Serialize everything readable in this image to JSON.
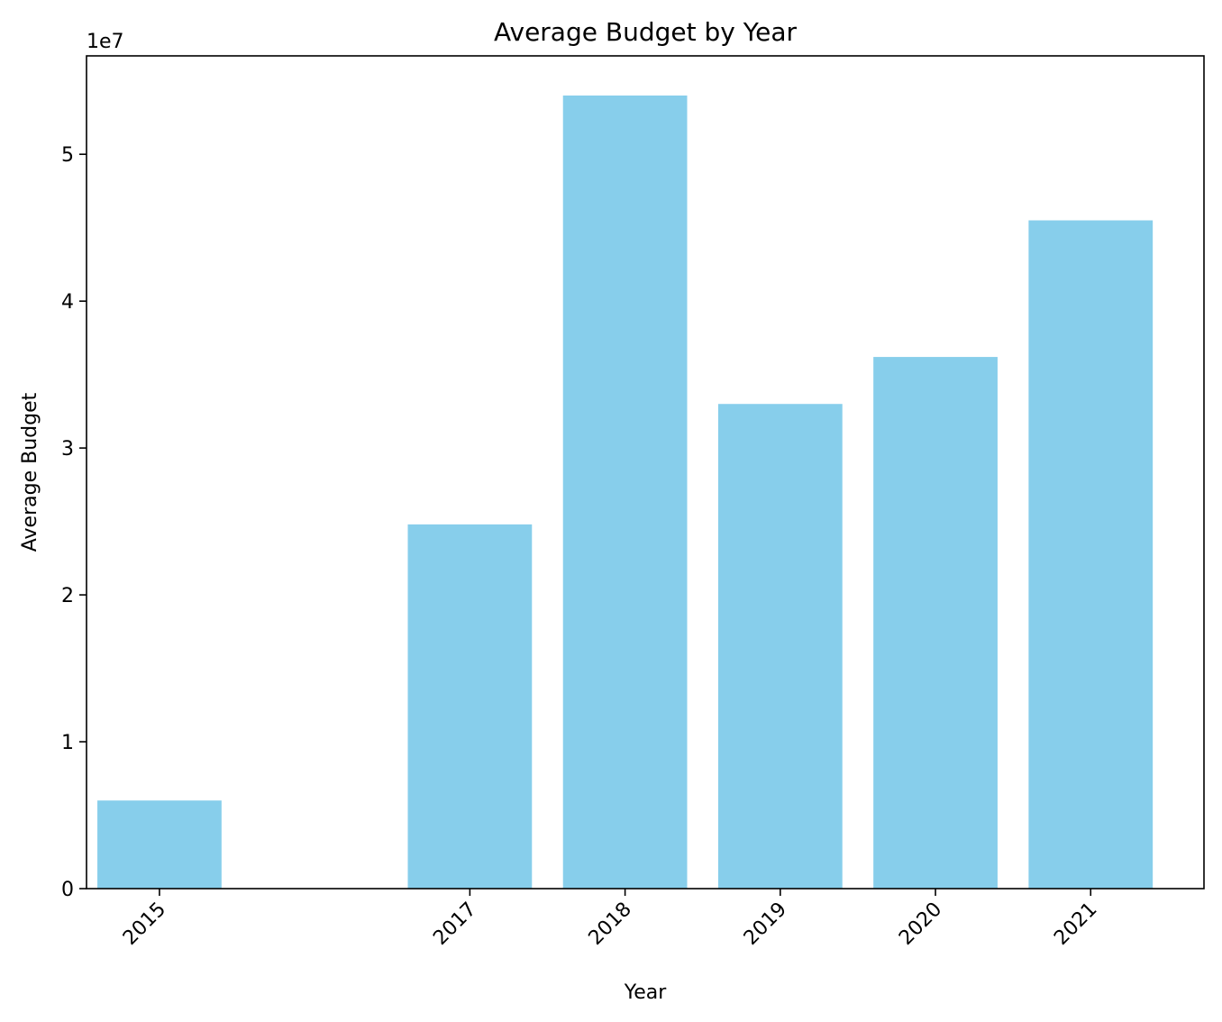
{
  "chart_data": {
    "type": "bar",
    "title": "Average Budget by Year",
    "xlabel": "Year",
    "ylabel": "Average Budget",
    "y_scale_label": "1e7",
    "x": [
      2015,
      2017,
      2018,
      2019,
      2020,
      2021
    ],
    "categories": [
      "2015",
      "2017",
      "2018",
      "2019",
      "2020",
      "2021"
    ],
    "values": [
      6000000,
      24800000,
      54000000,
      33000000,
      36200000,
      45500000
    ],
    "xlim": [
      2014.53,
      2021.73
    ],
    "ylim": [
      0,
      56700000
    ],
    "yticks": [
      0,
      10000000,
      20000000,
      30000000,
      40000000,
      50000000
    ],
    "ytick_labels": [
      "0",
      "1",
      "2",
      "3",
      "4",
      "5"
    ],
    "bar_width": 0.8,
    "bar_color": "#87CEEB",
    "grid": false,
    "legend": "none"
  }
}
